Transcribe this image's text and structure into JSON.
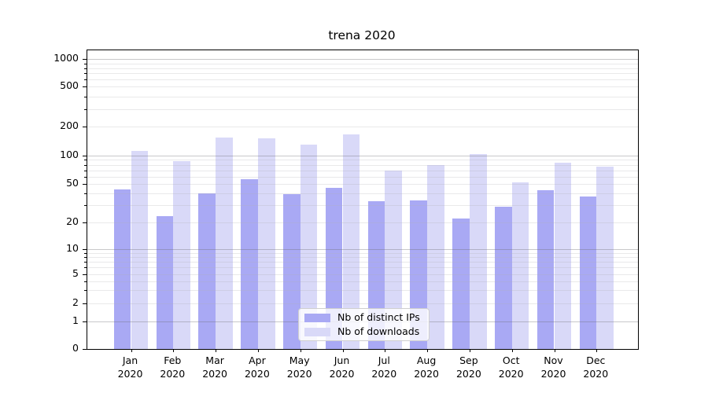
{
  "title": "trena 2020",
  "chart_data": {
    "type": "bar",
    "title": "trena 2020",
    "categories": [
      "Jan 2020",
      "Feb 2020",
      "Mar 2020",
      "Apr 2020",
      "May 2020",
      "Jun 2020",
      "Jul 2020",
      "Aug 2020",
      "Sep 2020",
      "Oct 2020",
      "Nov 2020",
      "Dec 2020"
    ],
    "series": [
      {
        "name": "Nb of distinct IPs",
        "color": "#a9a9f4",
        "values": [
          44,
          23,
          40,
          56,
          39,
          46,
          33,
          34,
          22,
          29,
          43,
          37
        ]
      },
      {
        "name": "Nb of downloads",
        "color": "#d9d9f8",
        "values": [
          112,
          87,
          155,
          152,
          130,
          165,
          70,
          80,
          104,
          52,
          84,
          76
        ]
      }
    ],
    "yscale": "symlog",
    "ylim": [
      0,
      1000
    ],
    "y_ticks": [
      0,
      1,
      2,
      5,
      10,
      20,
      50,
      100,
      200,
      500,
      1000
    ],
    "xlabel": "",
    "ylabel": "",
    "grid": "major-and-minor",
    "legend_position": "lower center"
  }
}
